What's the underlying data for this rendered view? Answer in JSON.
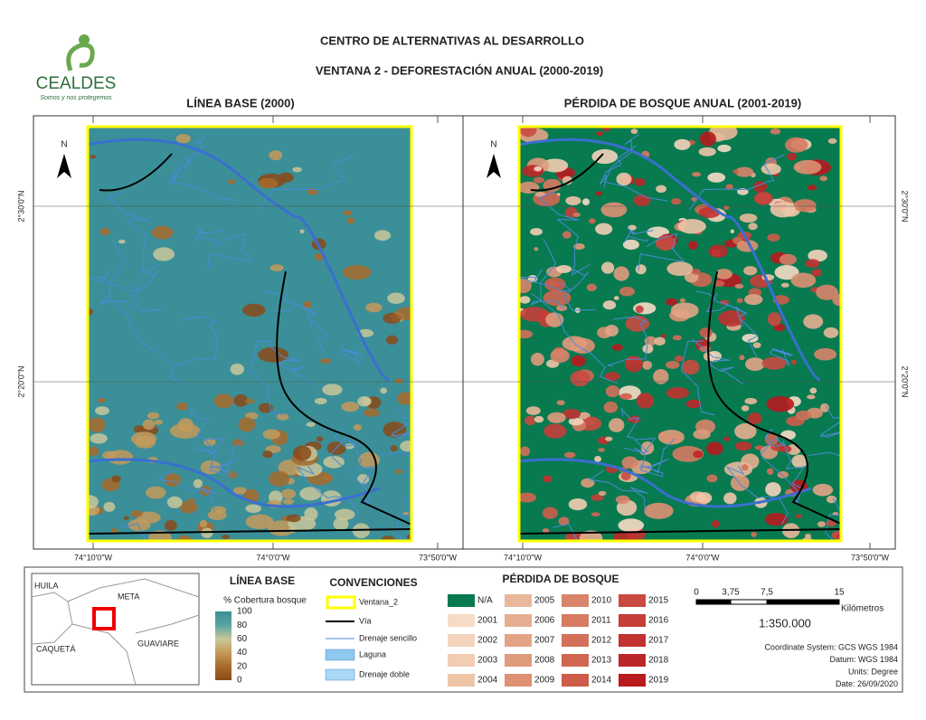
{
  "header": {
    "title": "CENTRO DE ALTERNATIVAS AL DESARROLLO",
    "subtitle": "VENTANA 2 - DEFORESTACIÓN ANUAL (2000-2019)"
  },
  "logo": {
    "name": "CEALDES",
    "tagline": "Somos y nos protegemos"
  },
  "maps": [
    {
      "title": "LÍNEA BASE (2000)"
    },
    {
      "title": "PÉRDIDA DE BOSQUE ANUAL (2001-2019)"
    }
  ],
  "coordinates": {
    "x_labels": [
      "74°10'0\"W",
      "74°0'0\"W",
      "73°50'0\"W"
    ],
    "y_labels": [
      "2°30'0\"N",
      "2°20'0\"N"
    ],
    "north": "N"
  },
  "inset": {
    "labels": [
      "HUILA",
      "META",
      "CAQUETÁ",
      "GUAVIARE"
    ]
  },
  "baseline_legend": {
    "title": "LÍNEA BASE",
    "subtitle": "% Cobertura bosque",
    "ticks": [
      100,
      80,
      60,
      40,
      20,
      0
    ],
    "colors": [
      "#3b8f98",
      "#5aa3a0",
      "#c9c79a",
      "#c49a5a",
      "#a86a2a",
      "#8a4a18"
    ]
  },
  "conventions": {
    "title": "CONVENCIONES",
    "items": [
      {
        "label": "Ventana_2",
        "color": "#ffff00"
      },
      {
        "label": "Vía",
        "color": "#000000"
      },
      {
        "label": "Drenaje sencillo",
        "color": "#4a8ad8"
      },
      {
        "label": "Laguna",
        "color": "#8ec8ee"
      },
      {
        "label": "Drenaje doble",
        "color": "#a8d8f4"
      }
    ]
  },
  "loss_legend": {
    "title": "PÉRDIDA DE BOSQUE",
    "items": [
      {
        "label": "N/A",
        "color": "#087a50"
      },
      {
        "label": "2001",
        "color": "#f6dcc6"
      },
      {
        "label": "2002",
        "color": "#f4d4bc"
      },
      {
        "label": "2003",
        "color": "#f2cdb2"
      },
      {
        "label": "2004",
        "color": "#efc5a8"
      },
      {
        "label": "2005",
        "color": "#e9b89a"
      },
      {
        "label": "2006",
        "color": "#e6ae90"
      },
      {
        "label": "2007",
        "color": "#e3a486"
      },
      {
        "label": "2008",
        "color": "#e09a7c"
      },
      {
        "label": "2009",
        "color": "#dd9072"
      },
      {
        "label": "2010",
        "color": "#d9846a"
      },
      {
        "label": "2011",
        "color": "#d67a62"
      },
      {
        "label": "2012",
        "color": "#d3705a"
      },
      {
        "label": "2013",
        "color": "#d06652"
      },
      {
        "label": "2014",
        "color": "#cd5c4a"
      },
      {
        "label": "2015",
        "color": "#c94a40"
      },
      {
        "label": "2016",
        "color": "#c53e38"
      },
      {
        "label": "2017",
        "color": "#c13230"
      },
      {
        "label": "2018",
        "color": "#bd2628"
      },
      {
        "label": "2019",
        "color": "#b81a1e"
      }
    ]
  },
  "scale": {
    "labels": [
      "0",
      "3,75",
      "7,5",
      "15"
    ],
    "unit": "Kilómetros",
    "ratio": "1:350.000"
  },
  "metadata": [
    "Coordinate System: GCS WGS 1984",
    "Datum: WGS 1984",
    "Units: Degree",
    "Date: 26/09/2020"
  ]
}
